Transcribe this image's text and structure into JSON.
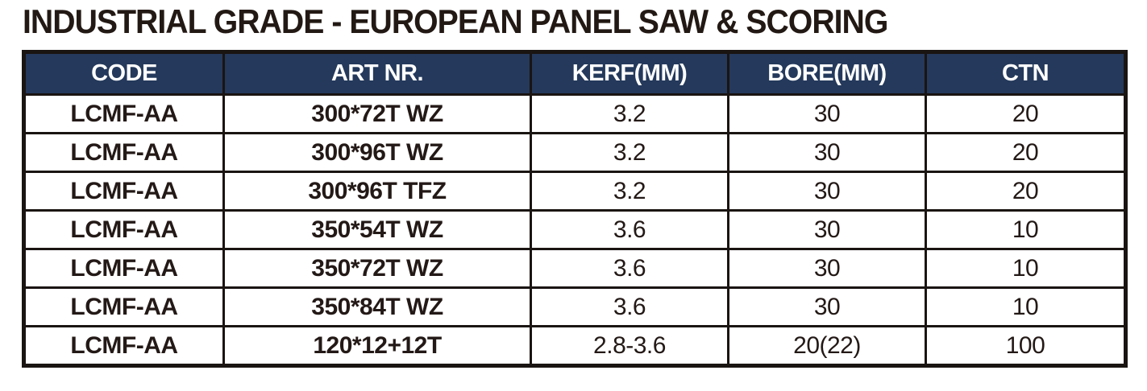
{
  "page": {
    "title": "INDUSTRIAL GRADE - EUROPEAN PANEL SAW & SCORING"
  },
  "table": {
    "columns": [
      "CODE",
      "ART NR.",
      "KERF(MM)",
      "BORE(MM)",
      "CTN"
    ],
    "rows": [
      [
        "LCMF-AA",
        "300*72T WZ",
        "3.2",
        "30",
        "20"
      ],
      [
        "LCMF-AA",
        "300*96T WZ",
        "3.2",
        "30",
        "20"
      ],
      [
        "LCMF-AA",
        "300*96T TFZ",
        "3.2",
        "30",
        "20"
      ],
      [
        "LCMF-AA",
        "350*54T WZ",
        "3.6",
        "30",
        "10"
      ],
      [
        "LCMF-AA",
        "350*72T WZ",
        "3.6",
        "30",
        "10"
      ],
      [
        "LCMF-AA",
        "350*84T WZ",
        "3.6",
        "30",
        "10"
      ],
      [
        "LCMF-AA",
        "120*12+12T",
        "2.8-3.6",
        "20(22)",
        "100"
      ]
    ],
    "colors": {
      "header_bg": "#24395B",
      "header_text": "#FFFFFF",
      "border": "#1A1412",
      "body_text": "#231916",
      "title_text": "#231914"
    }
  }
}
